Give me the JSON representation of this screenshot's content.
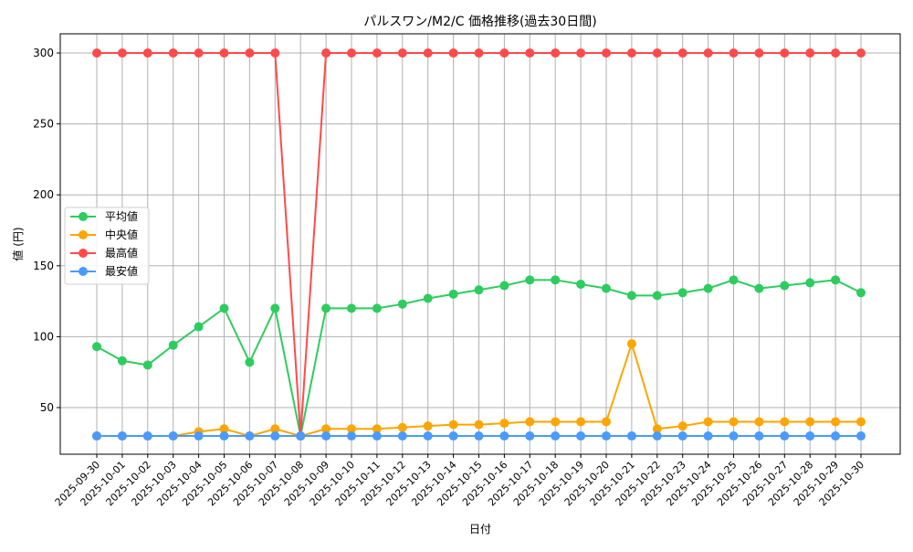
{
  "chart_data": {
    "type": "line",
    "title": "パルスワン/M2/C 価格推移(過去30日間)",
    "xlabel": "日付",
    "ylabel": "値 (円)",
    "ylim": [
      15,
      313
    ],
    "yticks": [
      50,
      100,
      150,
      200,
      250,
      300
    ],
    "grid": true,
    "legend_position": "center left",
    "categories": [
      "2025-09-30",
      "2025-10-01",
      "2025-10-02",
      "2025-10-03",
      "2025-10-04",
      "2025-10-05",
      "2025-10-06",
      "2025-10-07",
      "2025-10-08",
      "2025-10-09",
      "2025-10-10",
      "2025-10-11",
      "2025-10-12",
      "2025-10-13",
      "2025-10-14",
      "2025-10-15",
      "2025-10-16",
      "2025-10-17",
      "2025-10-18",
      "2025-10-19",
      "2025-10-20",
      "2025-10-21",
      "2025-10-22",
      "2025-10-23",
      "2025-10-24",
      "2025-10-25",
      "2025-10-26",
      "2025-10-27",
      "2025-10-28",
      "2025-10-29",
      "2025-10-30"
    ],
    "series": [
      {
        "name": "平均値",
        "color": "#2ecc5f",
        "values": [
          93,
          83,
          80,
          94,
          107,
          120,
          82,
          120,
          30,
          120,
          120,
          120,
          123,
          127,
          130,
          133,
          136,
          140,
          140,
          137,
          134,
          129,
          129,
          131,
          134,
          140,
          134,
          136,
          138,
          140,
          131
        ]
      },
      {
        "name": "中央値",
        "color": "#ffa500",
        "values": [
          30,
          30,
          30,
          30,
          33,
          35,
          30,
          35,
          30,
          35,
          35,
          35,
          36,
          37,
          38,
          38,
          39,
          40,
          40,
          40,
          40,
          95,
          35,
          37,
          40,
          40,
          40,
          40,
          40,
          40,
          40
        ]
      },
      {
        "name": "最高値",
        "color": "#ff4a4a",
        "values": [
          300,
          300,
          300,
          300,
          300,
          300,
          300,
          300,
          30,
          300,
          300,
          300,
          300,
          300,
          300,
          300,
          300,
          300,
          300,
          300,
          300,
          300,
          300,
          300,
          300,
          300,
          300,
          300,
          300,
          300,
          300
        ]
      },
      {
        "name": "最安値",
        "color": "#4a9aff",
        "values": [
          30,
          30,
          30,
          30,
          30,
          30,
          30,
          30,
          30,
          30,
          30,
          30,
          30,
          30,
          30,
          30,
          30,
          30,
          30,
          30,
          30,
          30,
          30,
          30,
          30,
          30,
          30,
          30,
          30,
          30,
          30
        ]
      }
    ]
  }
}
